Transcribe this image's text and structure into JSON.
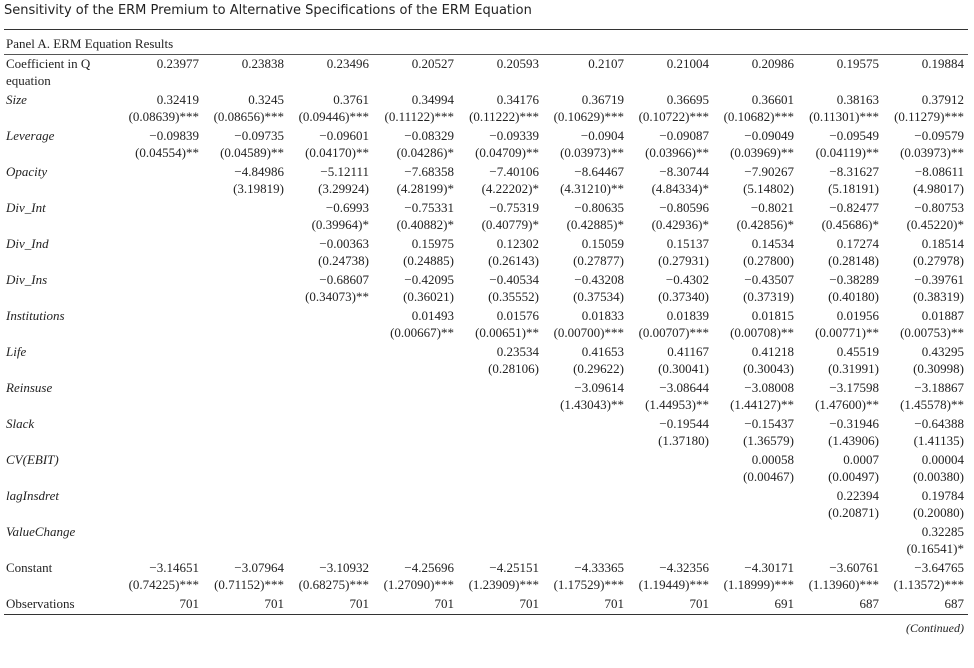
{
  "title": "Sensitivity of the ERM Premium to Alternative Specifications of the ERM Equation",
  "panel": "Panel A. ERM Equation Results",
  "rows": [
    {
      "label": "Coefficient in Q equation",
      "coef": [
        "0.23977",
        "0.23838",
        "0.23496",
        "0.20527",
        "0.20593",
        "0.2107",
        "0.21004",
        "0.20986",
        "0.19575",
        "0.19884"
      ]
    },
    {
      "label": "Size",
      "coef": [
        "0.32419",
        "0.3245",
        "0.3761",
        "0.34994",
        "0.34176",
        "0.36719",
        "0.36695",
        "0.36601",
        "0.38163",
        "0.37912"
      ],
      "se": [
        "(0.08639)***",
        "(0.08656)***",
        "(0.09446)***",
        "(0.11122)***",
        "(0.11222)***",
        "(0.10629)***",
        "(0.10722)***",
        "(0.10682)***",
        "(0.11301)***",
        "(0.11279)***"
      ]
    },
    {
      "label": "Leverage",
      "coef": [
        "−0.09839",
        "−0.09735",
        "−0.09601",
        "−0.08329",
        "−0.09339",
        "−0.0904",
        "−0.09087",
        "−0.09049",
        "−0.09549",
        "−0.09579"
      ],
      "se": [
        "(0.04554)**",
        "(0.04589)**",
        "(0.04170)**",
        "(0.04286)*",
        "(0.04709)**",
        "(0.03973)**",
        "(0.03966)**",
        "(0.03969)**",
        "(0.04119)**",
        "(0.03973)**"
      ]
    },
    {
      "label": "Opacity",
      "coef": [
        null,
        "−4.84986",
        "−5.12111",
        "−7.68358",
        "−7.40106",
        "−8.64467",
        "−8.30744",
        "−7.90267",
        "−8.31627",
        "−8.08611"
      ],
      "se": [
        null,
        "(3.19819)",
        "(3.29924)",
        "(4.28199)*",
        "(4.22202)*",
        "(4.31210)**",
        "(4.84334)*",
        "(5.14802)",
        "(5.18191)",
        "(4.98017)"
      ]
    },
    {
      "label": "Div_Int",
      "coef": [
        null,
        null,
        "−0.6993",
        "−0.75331",
        "−0.75319",
        "−0.80635",
        "−0.80596",
        "−0.8021",
        "−0.82477",
        "−0.80753"
      ],
      "se": [
        null,
        null,
        "(0.39964)*",
        "(0.40882)*",
        "(0.40779)*",
        "(0.42885)*",
        "(0.42936)*",
        "(0.42856)*",
        "(0.45686)*",
        "(0.45220)*"
      ]
    },
    {
      "label": "Div_Ind",
      "coef": [
        null,
        null,
        "−0.00363",
        "0.15975",
        "0.12302",
        "0.15059",
        "0.15137",
        "0.14534",
        "0.17274",
        "0.18514"
      ],
      "se": [
        null,
        null,
        "(0.24738)",
        "(0.24885)",
        "(0.26143)",
        "(0.27877)",
        "(0.27931)",
        "(0.27800)",
        "(0.28148)",
        "(0.27978)"
      ]
    },
    {
      "label": "Div_Ins",
      "coef": [
        null,
        null,
        "−0.68607",
        "−0.42095",
        "−0.40534",
        "−0.43208",
        "−0.4302",
        "−0.43507",
        "−0.38289",
        "−0.39761"
      ],
      "se": [
        null,
        null,
        "(0.34073)**",
        "(0.36021)",
        "(0.35552)",
        "(0.37534)",
        "(0.37340)",
        "(0.37319)",
        "(0.40180)",
        "(0.38319)"
      ]
    },
    {
      "label": "Institutions",
      "coef": [
        null,
        null,
        null,
        "0.01493",
        "0.01576",
        "0.01833",
        "0.01839",
        "0.01815",
        "0.01956",
        "0.01887"
      ],
      "se": [
        null,
        null,
        null,
        "(0.00667)**",
        "(0.00651)**",
        "(0.00700)***",
        "(0.00707)***",
        "(0.00708)**",
        "(0.00771)**",
        "(0.00753)**"
      ]
    },
    {
      "label": "Life",
      "coef": [
        null,
        null,
        null,
        null,
        "0.23534",
        "0.41653",
        "0.41167",
        "0.41218",
        "0.45519",
        "0.43295"
      ],
      "se": [
        null,
        null,
        null,
        null,
        "(0.28106)",
        "(0.29622)",
        "(0.30041)",
        "(0.30043)",
        "(0.31991)",
        "(0.30998)"
      ]
    },
    {
      "label": "Reinsuse",
      "coef": [
        null,
        null,
        null,
        null,
        null,
        "−3.09614",
        "−3.08644",
        "−3.08008",
        "−3.17598",
        "−3.18867"
      ],
      "se": [
        null,
        null,
        null,
        null,
        null,
        "(1.43043)**",
        "(1.44953)**",
        "(1.44127)**",
        "(1.47600)**",
        "(1.45578)**"
      ]
    },
    {
      "label": "Slack",
      "coef": [
        null,
        null,
        null,
        null,
        null,
        null,
        "−0.19544",
        "−0.15437",
        "−0.31946",
        "−0.64388"
      ],
      "se": [
        null,
        null,
        null,
        null,
        null,
        null,
        "(1.37180)",
        "(1.36579)",
        "(1.43906)",
        "(1.41135)"
      ]
    },
    {
      "label": "CV(EBIT)",
      "coef": [
        null,
        null,
        null,
        null,
        null,
        null,
        null,
        "0.00058",
        "0.0007",
        "0.00004"
      ],
      "se": [
        null,
        null,
        null,
        null,
        null,
        null,
        null,
        "(0.00467)",
        "(0.00497)",
        "(0.00380)"
      ]
    },
    {
      "label": "lagInsdret",
      "coef": [
        null,
        null,
        null,
        null,
        null,
        null,
        null,
        null,
        "0.22394",
        "0.19784"
      ],
      "se": [
        null,
        null,
        null,
        null,
        null,
        null,
        null,
        null,
        "(0.20871)",
        "(0.20080)"
      ]
    },
    {
      "label": "ValueChange",
      "coef": [
        null,
        null,
        null,
        null,
        null,
        null,
        null,
        null,
        null,
        "0.32285"
      ],
      "se": [
        null,
        null,
        null,
        null,
        null,
        null,
        null,
        null,
        null,
        "(0.16541)*"
      ]
    },
    {
      "label": "Constant",
      "coef": [
        "−3.14651",
        "−3.07964",
        "−3.10932",
        "−4.25696",
        "−4.25151",
        "−4.33365",
        "−4.32356",
        "−4.30171",
        "−3.60761",
        "−3.64765"
      ],
      "se": [
        "(0.74225)***",
        "(0.71152)***",
        "(0.68275)***",
        "(1.27090)***",
        "(1.23909)***",
        "(1.17529)***",
        "(1.19449)***",
        "(1.18999)***",
        "(1.13960)***",
        "(1.13572)***"
      ]
    },
    {
      "label": "Observations",
      "coef": [
        701,
        701,
        701,
        701,
        701,
        701,
        701,
        691,
        687,
        687
      ]
    }
  ],
  "footer": "(Continued)"
}
